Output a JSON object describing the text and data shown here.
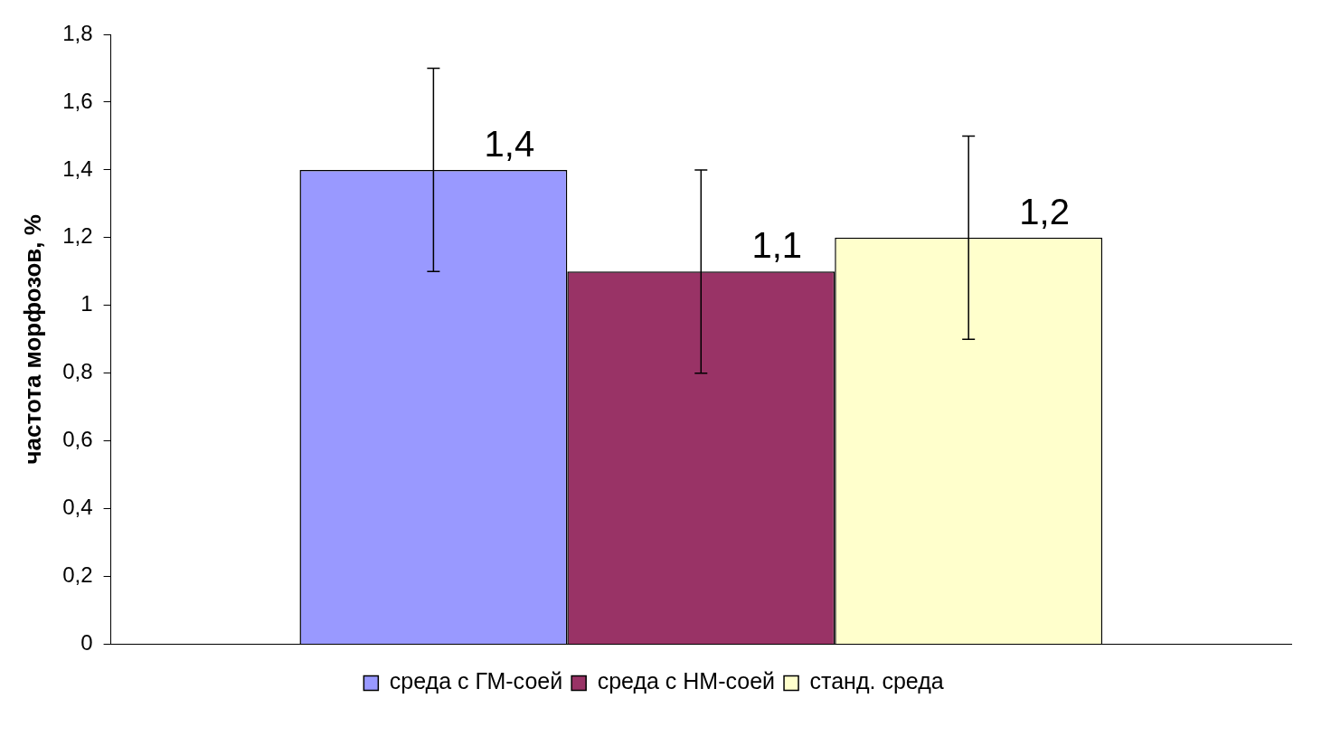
{
  "chart_data": {
    "type": "bar",
    "ylabel": "частота морфозов, %",
    "categories": [
      null
    ],
    "series": [
      {
        "name": "среда с ГМ-соей",
        "color": "#9999ff",
        "values": [
          1.4
        ],
        "errors": [
          0.3
        ],
        "value_labels": [
          "1,4"
        ]
      },
      {
        "name": "среда с НМ-соей",
        "color": "#993366",
        "values": [
          1.1
        ],
        "errors": [
          0.3
        ],
        "value_labels": [
          "1,1"
        ]
      },
      {
        "name": "станд. среда",
        "color": "#ffffcc",
        "values": [
          1.2
        ],
        "errors": [
          0.3
        ],
        "value_labels": [
          "1,2"
        ]
      }
    ],
    "ylim": [
      0,
      1.8
    ],
    "yticks": [
      0,
      {
        "value": 0.2,
        "label": "0,2"
      },
      {
        "value": 0.4,
        "label": "0,4"
      },
      {
        "value": 0.6,
        "label": "0,6"
      },
      {
        "value": 0.8,
        "label": "0,8"
      },
      1,
      {
        "value": 1.2,
        "label": "1,2"
      },
      {
        "value": 1.4,
        "label": "1,4"
      },
      {
        "value": 1.6,
        "label": "1,6"
      },
      {
        "value": 1.8,
        "label": "1,8"
      }
    ],
    "grid": false,
    "legend": "bottom"
  }
}
